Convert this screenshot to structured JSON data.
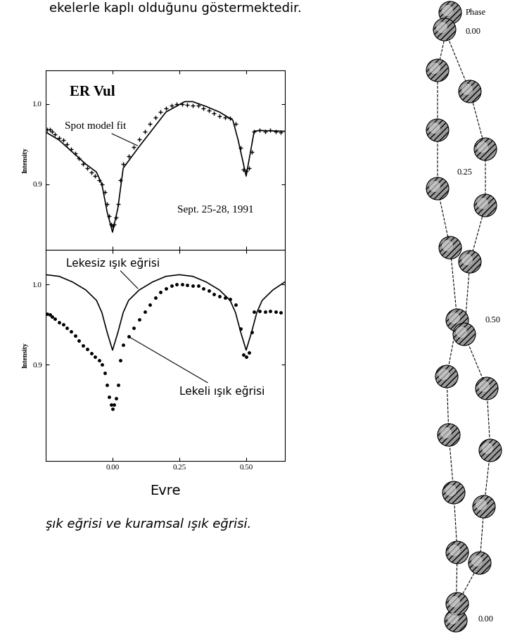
{
  "page": {
    "header_text": "ekelerle kaplı olduğunu göstermektedir.",
    "caption": "şık eğrisi ve kuramsal ışık eğrisi."
  },
  "chart_data": [
    {
      "type": "line",
      "title": "ER Vul",
      "annotations": [
        "Sept. 25-28, 1991"
      ],
      "y_label": "Intensity",
      "xlim": [
        -0.25,
        0.645
      ],
      "ylim": [
        0.818,
        1.042
      ],
      "xticks": [
        {
          "value": 0,
          "label": "0.00"
        },
        {
          "value": 0.25,
          "label": "0.25"
        },
        {
          "value": 0.5,
          "label": "0.50"
        }
      ],
      "yticks": [
        {
          "value": 0.9,
          "label": "0.9"
        },
        {
          "value": 1.0,
          "label": "1.0"
        }
      ],
      "tick_labels": "y",
      "series": [
        {
          "type": "scatter",
          "color": "#000000",
          "marker": "plus",
          "x": [
            -0.245,
            -0.235,
            -0.225,
            -0.215,
            -0.2,
            -0.185,
            -0.17,
            -0.155,
            -0.14,
            -0.125,
            -0.11,
            -0.095,
            -0.08,
            -0.065,
            -0.05,
            -0.04,
            -0.03,
            -0.02,
            -0.012,
            -0.006,
            0.0,
            0.006,
            0.012,
            0.02,
            0.03,
            0.04,
            0.06,
            0.08,
            0.1,
            0.12,
            0.14,
            0.16,
            0.18,
            0.2,
            0.22,
            0.24,
            0.26,
            0.28,
            0.3,
            0.32,
            0.34,
            0.36,
            0.38,
            0.4,
            0.42,
            0.44,
            0.46,
            0.48,
            0.49,
            0.5,
            0.51,
            0.52,
            0.53,
            0.55,
            0.57,
            0.59,
            0.61,
            0.63
          ],
          "values": [
            0.968,
            0.968,
            0.966,
            0.962,
            0.958,
            0.955,
            0.95,
            0.944,
            0.938,
            0.932,
            0.925,
            0.92,
            0.915,
            0.91,
            0.905,
            0.9,
            0.89,
            0.875,
            0.86,
            0.85,
            0.848,
            0.85,
            0.858,
            0.875,
            0.905,
            0.925,
            0.935,
            0.946,
            0.956,
            0.966,
            0.975,
            0.983,
            0.99,
            0.995,
            0.998,
            1.0,
            1.0,
            0.999,
            0.998,
            0.998,
            0.995,
            0.992,
            0.988,
            0.985,
            0.983,
            0.982,
            0.975,
            0.945,
            0.918,
            0.916,
            0.92,
            0.94,
            0.966,
            0.967,
            0.966,
            0.967,
            0.966,
            0.965
          ]
        },
        {
          "type": "line",
          "name": "Spot model fit",
          "color": "#000000",
          "line_style": "solid",
          "x": [
            -0.25,
            -0.2,
            -0.15,
            -0.1,
            -0.06,
            -0.04,
            -0.02,
            0.0,
            0.02,
            0.04,
            0.1,
            0.2,
            0.27,
            0.3,
            0.35,
            0.4,
            0.45,
            0.47,
            0.5,
            0.53,
            0.55,
            0.645
          ],
          "values": [
            0.965,
            0.955,
            0.94,
            0.925,
            0.915,
            0.9,
            0.865,
            0.84,
            0.87,
            0.92,
            0.947,
            0.99,
            1.003,
            1.003,
            0.997,
            0.99,
            0.98,
            0.955,
            0.91,
            0.966,
            0.967,
            0.966
          ]
        }
      ]
    },
    {
      "type": "line",
      "x_label": "Evre",
      "y_label": "Intensity",
      "xlim": [
        -0.25,
        0.645
      ],
      "ylim": [
        0.78,
        1.043
      ],
      "xticks": [
        {
          "value": 0,
          "label": "0.00"
        },
        {
          "value": 0.25,
          "label": "0.25"
        },
        {
          "value": 0.5,
          "label": "0.50"
        }
      ],
      "yticks": [
        {
          "value": 0.9,
          "label": "0.9"
        },
        {
          "value": 1.0,
          "label": "1.0"
        }
      ],
      "series": [
        {
          "type": "line",
          "name": "Lekesiz ışık eğrisi",
          "color": "#000000",
          "line_style": "solid",
          "x": [
            -0.25,
            -0.2,
            -0.15,
            -0.1,
            -0.06,
            -0.04,
            -0.02,
            0.0,
            0.02,
            0.04,
            0.06,
            0.1,
            0.15,
            0.2,
            0.25,
            0.3,
            0.35,
            0.4,
            0.44,
            0.46,
            0.48,
            0.5,
            0.52,
            0.54,
            0.56,
            0.6,
            0.645
          ],
          "values": [
            1.012,
            1.01,
            1.003,
            0.993,
            0.98,
            0.965,
            0.94,
            0.918,
            0.94,
            0.965,
            0.98,
            0.993,
            1.003,
            1.01,
            1.012,
            1.01,
            1.003,
            0.993,
            0.98,
            0.965,
            0.94,
            0.918,
            0.94,
            0.965,
            0.98,
            0.993,
            1.003
          ]
        },
        {
          "type": "scatter",
          "name": "Lekeli ışık eğrisi",
          "color": "#000000",
          "marker": "point",
          "x": [
            -0.245,
            -0.235,
            -0.225,
            -0.215,
            -0.2,
            -0.185,
            -0.17,
            -0.155,
            -0.14,
            -0.125,
            -0.11,
            -0.095,
            -0.08,
            -0.065,
            -0.05,
            -0.04,
            -0.03,
            -0.02,
            -0.012,
            -0.006,
            0.0,
            0.006,
            0.012,
            0.02,
            0.03,
            0.04,
            0.06,
            0.08,
            0.1,
            0.12,
            0.14,
            0.16,
            0.18,
            0.2,
            0.22,
            0.24,
            0.26,
            0.28,
            0.3,
            0.32,
            0.34,
            0.36,
            0.38,
            0.4,
            0.42,
            0.44,
            0.46,
            0.48,
            0.49,
            0.5,
            0.51,
            0.52,
            0.53,
            0.55,
            0.57,
            0.59,
            0.61,
            0.63
          ],
          "values": [
            0.963,
            0.962,
            0.96,
            0.957,
            0.953,
            0.95,
            0.946,
            0.941,
            0.936,
            0.93,
            0.924,
            0.919,
            0.914,
            0.91,
            0.905,
            0.9,
            0.89,
            0.875,
            0.86,
            0.85,
            0.845,
            0.85,
            0.858,
            0.875,
            0.905,
            0.925,
            0.935,
            0.946,
            0.956,
            0.966,
            0.975,
            0.983,
            0.99,
            0.995,
            0.998,
            1.0,
            1.0,
            0.999,
            0.998,
            0.998,
            0.995,
            0.992,
            0.988,
            0.985,
            0.983,
            0.982,
            0.975,
            0.945,
            0.912,
            0.91,
            0.915,
            0.94,
            0.966,
            0.967,
            0.966,
            0.967,
            0.966,
            0.965
          ]
        }
      ]
    }
  ],
  "phase_sketch": {
    "title": "Phase",
    "labels": [
      "0.00",
      "0.25",
      "0.50",
      "0.00"
    ]
  }
}
